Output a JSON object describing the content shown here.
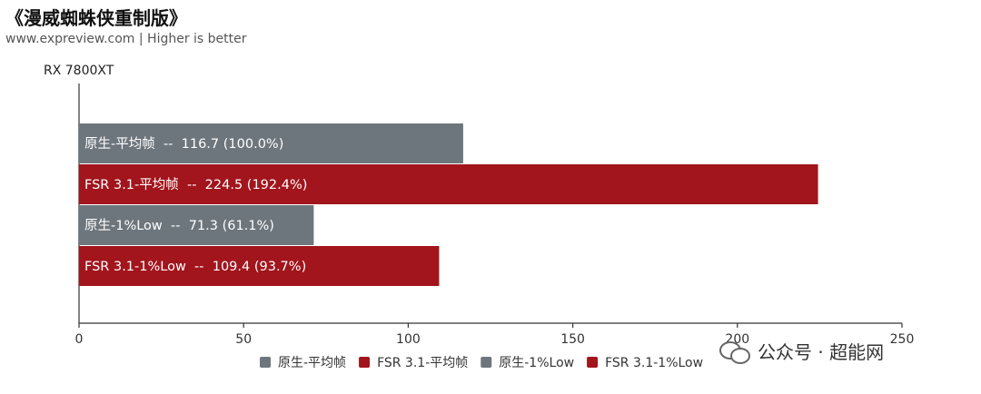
{
  "header": {
    "title": "《漫威蜘蛛侠重制版》",
    "subtitle": "www.expreview.com | Higher is better"
  },
  "watermark": {
    "text": "公众号 · 超能网",
    "icon": "wechat-icon"
  },
  "colors": {
    "native": "#6d767d",
    "fsr": "#a2151c",
    "bar_text": "#ffffff",
    "axis": "#333333"
  },
  "chart_data": {
    "type": "bar",
    "orientation": "horizontal",
    "group_label": "RX 7800XT",
    "bars": [
      {
        "series": "原生-平均帧",
        "value": 116.7,
        "label": "原生-平均帧  --  116.7 (100.0%)",
        "color": "#6d767d"
      },
      {
        "series": "FSR 3.1-平均帧",
        "value": 224.5,
        "label": "FSR 3.1-平均帧  --  224.5 (192.4%)",
        "color": "#a2151c"
      },
      {
        "series": "原生-1%Low",
        "value": 71.3,
        "label": "原生-1%Low  --  71.3 (61.1%)",
        "color": "#6d767d"
      },
      {
        "series": "FSR 3.1-1%Low",
        "value": 109.4,
        "label": "FSR 3.1-1%Low  --  109.4 (93.7%)",
        "color": "#a2151c"
      }
    ],
    "xlim": [
      0,
      250
    ],
    "xticks": [
      0,
      50,
      100,
      150,
      200,
      250
    ],
    "grid": false,
    "legend": {
      "placement": "bottom",
      "entries": [
        {
          "name": "原生-平均帧",
          "color": "#6d767d"
        },
        {
          "name": "FSR 3.1-平均帧",
          "color": "#a2151c"
        },
        {
          "name": "原生-1%Low",
          "color": "#6d767d"
        },
        {
          "name": "FSR 3.1-1%Low",
          "color": "#a2151c"
        }
      ]
    }
  }
}
